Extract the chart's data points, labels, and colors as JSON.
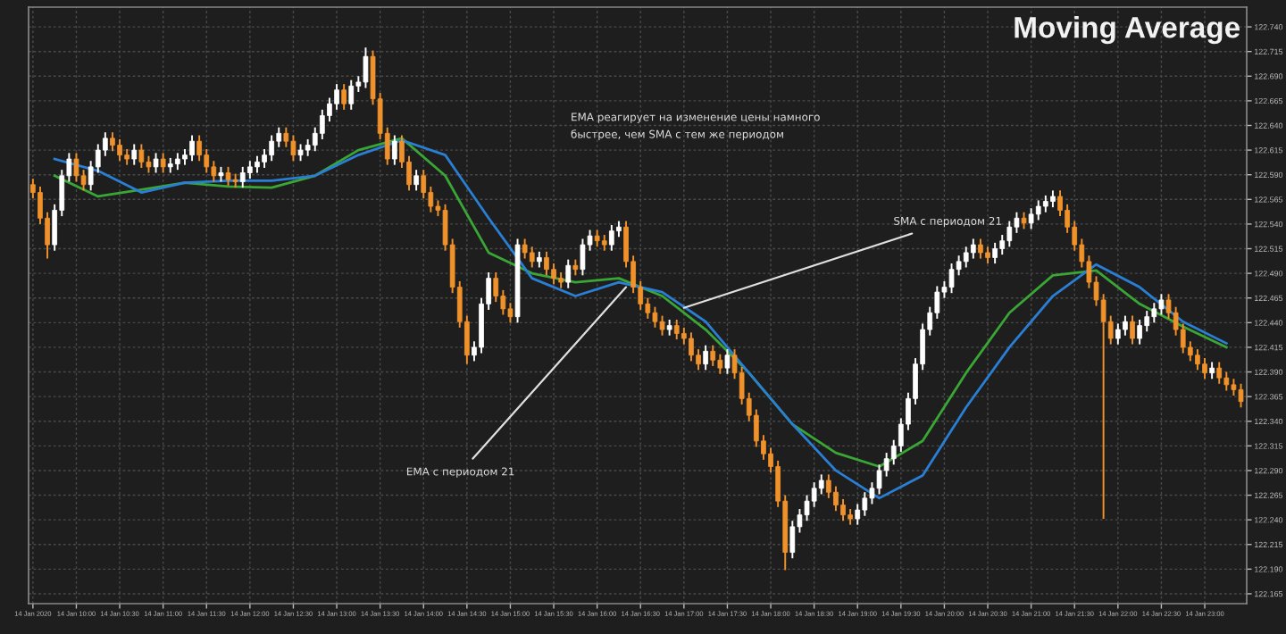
{
  "chart_data": {
    "type": "candlestick",
    "title": "Moving Average",
    "annotations": [
      {
        "text": "EMA с периодом 21",
        "x": "2020-01-14T16:20",
        "y": 122.476
      },
      {
        "text": "SMA с периодом 21",
        "x": "2020-01-14T17:00",
        "y": 122.455
      },
      "EMA реагирует на изменение цены намного\nбыстрее, чем SMA с тем же периодом"
    ],
    "grid": true,
    "xlim": [
      "2020-01-14T09:27",
      "2020-01-14T23:29"
    ],
    "ylim": [
      122.155,
      122.76
    ],
    "xticks": [
      {
        "value": "2020-01-14T09:30",
        "label": "14 Jan 2020"
      },
      {
        "value": "2020-01-14T10:00",
        "label": "14 Jan 10:00"
      },
      {
        "value": "2020-01-14T10:30",
        "label": "14 Jan 10:30"
      },
      {
        "value": "2020-01-14T11:00",
        "label": "14 Jan 11:00"
      },
      {
        "value": "2020-01-14T11:30",
        "label": "14 Jan 11:30"
      },
      {
        "value": "2020-01-14T12:00",
        "label": "14 Jan 12:00"
      },
      {
        "value": "2020-01-14T12:30",
        "label": "14 Jan 12:30"
      },
      {
        "value": "2020-01-14T13:00",
        "label": "14 Jan 13:00"
      },
      {
        "value": "2020-01-14T13:30",
        "label": "14 Jan 13:30"
      },
      {
        "value": "2020-01-14T14:00",
        "label": "14 Jan 14:00"
      },
      {
        "value": "2020-01-14T14:30",
        "label": "14 Jan 14:30"
      },
      {
        "value": "2020-01-14T15:00",
        "label": "14 Jan 15:00"
      },
      {
        "value": "2020-01-14T15:30",
        "label": "14 Jan 15:30"
      },
      {
        "value": "2020-01-14T16:00",
        "label": "14 Jan 16:00"
      },
      {
        "value": "2020-01-14T16:30",
        "label": "14 Jan 16:30"
      },
      {
        "value": "2020-01-14T17:00",
        "label": "14 Jan 17:00"
      },
      {
        "value": "2020-01-14T17:30",
        "label": "14 Jan 17:30"
      },
      {
        "value": "2020-01-14T18:00",
        "label": "14 Jan 18:00"
      },
      {
        "value": "2020-01-14T18:30",
        "label": "14 Jan 18:30"
      },
      {
        "value": "2020-01-14T19:00",
        "label": "14 Jan 19:00"
      },
      {
        "value": "2020-01-14T19:30",
        "label": "14 Jan 19:30"
      },
      {
        "value": "2020-01-14T20:00",
        "label": "14 Jan 20:00"
      },
      {
        "value": "2020-01-14T20:30",
        "label": "14 Jan 20:30"
      },
      {
        "value": "2020-01-14T21:00",
        "label": "14 Jan 21:00"
      },
      {
        "value": "2020-01-14T21:30",
        "label": "14 Jan 21:30"
      },
      {
        "value": "2020-01-14T22:00",
        "label": "14 Jan 22:00"
      },
      {
        "value": "2020-01-14T22:30",
        "label": "14 Jan 22:30"
      },
      {
        "value": "2020-01-14T23:00",
        "label": "14 Jan 23:00"
      }
    ],
    "yticks": [
      {
        "value": 122.165,
        "label": "122.165"
      },
      {
        "value": 122.19,
        "label": "122.190"
      },
      {
        "value": 122.215,
        "label": "122.215"
      },
      {
        "value": 122.24,
        "label": "122.240"
      },
      {
        "value": 122.265,
        "label": "122.265"
      },
      {
        "value": 122.29,
        "label": "122.290"
      },
      {
        "value": 122.315,
        "label": "122.315"
      },
      {
        "value": 122.34,
        "label": "122.340"
      },
      {
        "value": 122.365,
        "label": "122.365"
      },
      {
        "value": 122.39,
        "label": "122.390"
      },
      {
        "value": 122.415,
        "label": "122.415"
      },
      {
        "value": 122.44,
        "label": "122.440"
      },
      {
        "value": 122.465,
        "label": "122.465"
      },
      {
        "value": 122.49,
        "label": "122.490"
      },
      {
        "value": 122.515,
        "label": "122.515"
      },
      {
        "value": 122.54,
        "label": "122.540"
      },
      {
        "value": 122.565,
        "label": "122.565"
      },
      {
        "value": 122.59,
        "label": "122.590"
      },
      {
        "value": 122.615,
        "label": "122.615"
      },
      {
        "value": 122.64,
        "label": "122.640"
      },
      {
        "value": 122.665,
        "label": "122.665"
      },
      {
        "value": 122.69,
        "label": "122.690"
      },
      {
        "value": 122.715,
        "label": "122.715"
      },
      {
        "value": 122.74,
        "label": "122.740"
      }
    ],
    "x": [
      "2020-01-14T09:30",
      "2020-01-14T09:35",
      "2020-01-14T09:40",
      "2020-01-14T09:45",
      "2020-01-14T09:50",
      "2020-01-14T09:55",
      "2020-01-14T10:00",
      "2020-01-14T10:05",
      "2020-01-14T10:10",
      "2020-01-14T10:15",
      "2020-01-14T10:20",
      "2020-01-14T10:25",
      "2020-01-14T10:30",
      "2020-01-14T10:35",
      "2020-01-14T10:40",
      "2020-01-14T10:45",
      "2020-01-14T10:50",
      "2020-01-14T10:55",
      "2020-01-14T11:00",
      "2020-01-14T11:05",
      "2020-01-14T11:10",
      "2020-01-14T11:15",
      "2020-01-14T11:20",
      "2020-01-14T11:25",
      "2020-01-14T11:30",
      "2020-01-14T11:35",
      "2020-01-14T11:40",
      "2020-01-14T11:45",
      "2020-01-14T11:50",
      "2020-01-14T11:55",
      "2020-01-14T12:00",
      "2020-01-14T12:05",
      "2020-01-14T12:10",
      "2020-01-14T12:15",
      "2020-01-14T12:20",
      "2020-01-14T12:25",
      "2020-01-14T12:30",
      "2020-01-14T12:35",
      "2020-01-14T12:40",
      "2020-01-14T12:45",
      "2020-01-14T12:50",
      "2020-01-14T12:55",
      "2020-01-14T13:00",
      "2020-01-14T13:05",
      "2020-01-14T13:10",
      "2020-01-14T13:15",
      "2020-01-14T13:20",
      "2020-01-14T13:25",
      "2020-01-14T13:30",
      "2020-01-14T13:35",
      "2020-01-14T13:40",
      "2020-01-14T13:45",
      "2020-01-14T13:50",
      "2020-01-14T13:55",
      "2020-01-14T14:00",
      "2020-01-14T14:05",
      "2020-01-14T14:10",
      "2020-01-14T14:15",
      "2020-01-14T14:20",
      "2020-01-14T14:25",
      "2020-01-14T14:30",
      "2020-01-14T14:35",
      "2020-01-14T14:40",
      "2020-01-14T14:45",
      "2020-01-14T14:50",
      "2020-01-14T14:55",
      "2020-01-14T15:00",
      "2020-01-14T15:05",
      "2020-01-14T15:10",
      "2020-01-14T15:15",
      "2020-01-14T15:20",
      "2020-01-14T15:25",
      "2020-01-14T15:30",
      "2020-01-14T15:35",
      "2020-01-14T15:40",
      "2020-01-14T15:45",
      "2020-01-14T15:50",
      "2020-01-14T15:55",
      "2020-01-14T16:00",
      "2020-01-14T16:05",
      "2020-01-14T16:10",
      "2020-01-14T16:15",
      "2020-01-14T16:20",
      "2020-01-14T16:25",
      "2020-01-14T16:30",
      "2020-01-14T16:35",
      "2020-01-14T16:40",
      "2020-01-14T16:45",
      "2020-01-14T16:50",
      "2020-01-14T16:55",
      "2020-01-14T17:00",
      "2020-01-14T17:05",
      "2020-01-14T17:10",
      "2020-01-14T17:15",
      "2020-01-14T17:20",
      "2020-01-14T17:25",
      "2020-01-14T17:30",
      "2020-01-14T17:35",
      "2020-01-14T17:40",
      "2020-01-14T17:45",
      "2020-01-14T17:50",
      "2020-01-14T17:55",
      "2020-01-14T18:00",
      "2020-01-14T18:05",
      "2020-01-14T18:10",
      "2020-01-14T18:15",
      "2020-01-14T18:20",
      "2020-01-14T18:25",
      "2020-01-14T18:30",
      "2020-01-14T18:35",
      "2020-01-14T18:40",
      "2020-01-14T18:45",
      "2020-01-14T18:50",
      "2020-01-14T18:55",
      "2020-01-14T19:00",
      "2020-01-14T19:05",
      "2020-01-14T19:10",
      "2020-01-14T19:15",
      "2020-01-14T19:20",
      "2020-01-14T19:25",
      "2020-01-14T19:30",
      "2020-01-14T19:35",
      "2020-01-14T19:40",
      "2020-01-14T19:45",
      "2020-01-14T19:50",
      "2020-01-14T19:55",
      "2020-01-14T20:00",
      "2020-01-14T20:05",
      "2020-01-14T20:10",
      "2020-01-14T20:15",
      "2020-01-14T20:20",
      "2020-01-14T20:25",
      "2020-01-14T20:30",
      "2020-01-14T20:35",
      "2020-01-14T20:40",
      "2020-01-14T20:45",
      "2020-01-14T20:50",
      "2020-01-14T20:55",
      "2020-01-14T21:00",
      "2020-01-14T21:05",
      "2020-01-14T21:10",
      "2020-01-14T21:15",
      "2020-01-14T21:20",
      "2020-01-14T21:25",
      "2020-01-14T21:30",
      "2020-01-14T21:35",
      "2020-01-14T21:40",
      "2020-01-14T21:45",
      "2020-01-14T21:50",
      "2020-01-14T21:55",
      "2020-01-14T22:00",
      "2020-01-14T22:05",
      "2020-01-14T22:10",
      "2020-01-14T22:15",
      "2020-01-14T22:20",
      "2020-01-14T22:25",
      "2020-01-14T22:30",
      "2020-01-14T22:35",
      "2020-01-14T22:40",
      "2020-01-14T22:45",
      "2020-01-14T22:50",
      "2020-01-14T22:55",
      "2020-01-14T23:00",
      "2020-01-14T23:05",
      "2020-01-14T23:10",
      "2020-01-14T23:15",
      "2020-01-14T23:20",
      "2020-01-14T23:25"
    ],
    "ohlc": [
      [
        122.58,
        122.586,
        122.566,
        122.572
      ],
      [
        122.572,
        122.578,
        122.54,
        122.546
      ],
      [
        122.546,
        122.552,
        122.505,
        122.519
      ],
      [
        122.519,
        122.56,
        122.513,
        122.554
      ],
      [
        122.554,
        122.595,
        122.548,
        122.589
      ],
      [
        122.589,
        122.612,
        122.583,
        122.606
      ],
      [
        122.606,
        122.612,
        122.583,
        122.589
      ],
      [
        122.589,
        122.595,
        122.574,
        122.58
      ],
      [
        122.58,
        122.604,
        122.574,
        122.598
      ],
      [
        122.598,
        122.621,
        122.592,
        122.615
      ],
      [
        122.615,
        122.633,
        122.609,
        122.627
      ],
      [
        122.627,
        122.633,
        122.614,
        122.62
      ],
      [
        122.62,
        122.626,
        122.604,
        122.61
      ],
      [
        122.61,
        122.616,
        122.6,
        122.606
      ],
      [
        122.606,
        122.621,
        122.6,
        122.615
      ],
      [
        122.615,
        122.621,
        122.597,
        122.603
      ],
      [
        122.603,
        122.609,
        122.592,
        122.598
      ],
      [
        122.598,
        122.612,
        122.592,
        122.606
      ],
      [
        122.606,
        122.612,
        122.592,
        122.598
      ],
      [
        122.598,
        122.607,
        122.592,
        122.601
      ],
      [
        122.601,
        122.612,
        122.595,
        122.606
      ],
      [
        122.606,
        122.616,
        122.6,
        122.61
      ],
      [
        122.61,
        122.63,
        122.604,
        122.624
      ],
      [
        122.624,
        122.63,
        122.604,
        122.61
      ],
      [
        122.61,
        122.616,
        122.592,
        122.598
      ],
      [
        122.598,
        122.604,
        122.583,
        122.589
      ],
      [
        122.589,
        122.598,
        122.583,
        122.592
      ],
      [
        122.592,
        122.598,
        122.579,
        122.585
      ],
      [
        122.585,
        122.591,
        122.577,
        122.583
      ],
      [
        122.583,
        122.598,
        122.577,
        122.592
      ],
      [
        122.592,
        122.604,
        122.586,
        122.598
      ],
      [
        122.598,
        122.609,
        122.592,
        122.603
      ],
      [
        122.603,
        122.616,
        122.597,
        122.61
      ],
      [
        122.61,
        122.63,
        122.604,
        122.624
      ],
      [
        122.624,
        122.638,
        122.618,
        122.632
      ],
      [
        122.632,
        122.638,
        122.618,
        122.624
      ],
      [
        122.624,
        122.63,
        122.604,
        122.61
      ],
      [
        122.61,
        122.621,
        122.604,
        122.615
      ],
      [
        122.615,
        122.626,
        122.609,
        122.62
      ],
      [
        122.62,
        122.638,
        122.614,
        122.632
      ],
      [
        122.632,
        122.656,
        122.626,
        122.65
      ],
      [
        122.65,
        122.668,
        122.644,
        122.662
      ],
      [
        122.662,
        122.682,
        122.656,
        122.676
      ],
      [
        122.676,
        122.682,
        122.656,
        122.662
      ],
      [
        122.662,
        122.686,
        122.656,
        122.68
      ],
      [
        122.68,
        122.69,
        122.674,
        122.684
      ],
      [
        122.684,
        122.719,
        122.678,
        122.71
      ],
      [
        122.71,
        122.716,
        122.661,
        122.667
      ],
      [
        122.667,
        122.673,
        122.626,
        122.632
      ],
      [
        122.632,
        122.638,
        122.6,
        122.606
      ],
      [
        122.606,
        122.63,
        122.6,
        122.624
      ],
      [
        122.624,
        122.63,
        122.597,
        122.603
      ],
      [
        122.603,
        122.609,
        122.574,
        122.58
      ],
      [
        122.58,
        122.595,
        122.574,
        122.589
      ],
      [
        122.589,
        122.595,
        122.566,
        122.572
      ],
      [
        122.572,
        122.578,
        122.552,
        122.558
      ],
      [
        122.558,
        122.564,
        122.548,
        122.554
      ],
      [
        122.554,
        122.56,
        122.513,
        122.519
      ],
      [
        122.519,
        122.525,
        122.47,
        122.476
      ],
      [
        122.476,
        122.482,
        122.435,
        122.441
      ],
      [
        122.441,
        122.447,
        122.398,
        122.407
      ],
      [
        122.407,
        122.421,
        122.401,
        122.415
      ],
      [
        122.415,
        122.465,
        122.409,
        122.459
      ],
      [
        122.459,
        122.491,
        122.453,
        122.485
      ],
      [
        122.485,
        122.491,
        122.461,
        122.467
      ],
      [
        122.467,
        122.473,
        122.448,
        122.454
      ],
      [
        122.454,
        122.46,
        122.44,
        122.446
      ],
      [
        122.446,
        122.525,
        122.44,
        122.519
      ],
      [
        122.519,
        122.525,
        122.505,
        122.511
      ],
      [
        122.511,
        122.517,
        122.496,
        122.502
      ],
      [
        122.502,
        122.512,
        122.496,
        122.506
      ],
      [
        122.506,
        122.512,
        122.488,
        122.494
      ],
      [
        122.494,
        122.5,
        122.479,
        122.485
      ],
      [
        122.485,
        122.491,
        122.475,
        122.481
      ],
      [
        122.481,
        122.504,
        122.475,
        122.498
      ],
      [
        122.498,
        122.504,
        122.488,
        122.494
      ],
      [
        122.494,
        122.525,
        122.488,
        122.519
      ],
      [
        122.519,
        122.534,
        122.513,
        122.528
      ],
      [
        122.528,
        122.534,
        122.517,
        122.523
      ],
      [
        122.523,
        122.529,
        122.513,
        122.519
      ],
      [
        122.519,
        122.539,
        122.513,
        122.533
      ],
      [
        122.533,
        122.543,
        122.527,
        122.537
      ],
      [
        122.537,
        122.543,
        122.496,
        122.502
      ],
      [
        122.502,
        122.508,
        122.47,
        122.476
      ],
      [
        122.476,
        122.482,
        122.453,
        122.459
      ],
      [
        122.459,
        122.465,
        122.444,
        122.45
      ],
      [
        122.45,
        122.456,
        122.435,
        122.441
      ],
      [
        122.441,
        122.447,
        122.427,
        122.433
      ],
      [
        122.433,
        122.443,
        122.427,
        122.437
      ],
      [
        122.437,
        122.443,
        122.423,
        122.429
      ],
      [
        122.429,
        122.435,
        122.418,
        122.424
      ],
      [
        122.424,
        122.43,
        122.401,
        122.407
      ],
      [
        122.407,
        122.413,
        122.392,
        122.398
      ],
      [
        122.398,
        122.417,
        122.392,
        122.411
      ],
      [
        122.411,
        122.417,
        122.396,
        122.402
      ],
      [
        122.402,
        122.408,
        122.388,
        122.394
      ],
      [
        122.394,
        122.413,
        122.388,
        122.407
      ],
      [
        122.407,
        122.413,
        122.383,
        122.389
      ],
      [
        122.389,
        122.395,
        122.357,
        122.363
      ],
      [
        122.363,
        122.369,
        122.34,
        122.346
      ],
      [
        122.346,
        122.352,
        122.314,
        122.32
      ],
      [
        122.32,
        122.326,
        122.301,
        122.307
      ],
      [
        122.307,
        122.313,
        122.288,
        122.294
      ],
      [
        122.294,
        122.3,
        122.253,
        122.259
      ],
      [
        122.259,
        122.265,
        122.189,
        122.207
      ],
      [
        122.207,
        122.239,
        122.201,
        122.233
      ],
      [
        122.233,
        122.251,
        122.227,
        122.245
      ],
      [
        122.245,
        122.265,
        122.239,
        122.259
      ],
      [
        122.259,
        122.278,
        122.253,
        122.272
      ],
      [
        122.272,
        122.286,
        122.266,
        122.28
      ],
      [
        122.28,
        122.286,
        122.262,
        122.268
      ],
      [
        122.268,
        122.274,
        122.249,
        122.255
      ],
      [
        122.255,
        122.261,
        122.239,
        122.245
      ],
      [
        122.245,
        122.251,
        122.235,
        122.241
      ],
      [
        122.241,
        122.256,
        122.235,
        122.25
      ],
      [
        122.25,
        122.268,
        122.244,
        122.262
      ],
      [
        122.262,
        122.278,
        122.256,
        122.272
      ],
      [
        122.272,
        122.296,
        122.266,
        122.29
      ],
      [
        122.29,
        122.308,
        122.284,
        122.302
      ],
      [
        122.302,
        122.321,
        122.296,
        122.315
      ],
      [
        122.315,
        122.343,
        122.309,
        122.337
      ],
      [
        122.337,
        122.369,
        122.331,
        122.363
      ],
      [
        122.363,
        122.404,
        122.357,
        122.398
      ],
      [
        122.398,
        122.439,
        122.392,
        122.433
      ],
      [
        122.433,
        122.456,
        122.427,
        122.45
      ],
      [
        122.45,
        122.477,
        122.444,
        122.471
      ],
      [
        122.471,
        122.482,
        122.465,
        122.476
      ],
      [
        122.476,
        122.5,
        122.47,
        122.494
      ],
      [
        122.494,
        122.508,
        122.488,
        122.502
      ],
      [
        122.502,
        122.517,
        122.496,
        122.511
      ],
      [
        122.511,
        122.525,
        122.505,
        122.519
      ],
      [
        122.519,
        122.525,
        122.505,
        122.511
      ],
      [
        122.511,
        122.517,
        122.5,
        122.506
      ],
      [
        122.506,
        122.521,
        122.5,
        122.515
      ],
      [
        122.515,
        122.529,
        122.509,
        122.523
      ],
      [
        122.523,
        122.543,
        122.517,
        122.537
      ],
      [
        122.537,
        122.552,
        122.531,
        122.546
      ],
      [
        122.546,
        122.552,
        122.535,
        122.541
      ],
      [
        122.541,
        122.556,
        122.535,
        122.55
      ],
      [
        122.55,
        122.564,
        122.544,
        122.558
      ],
      [
        122.558,
        122.569,
        122.552,
        122.563
      ],
      [
        122.563,
        122.574,
        122.557,
        122.568
      ],
      [
        122.568,
        122.574,
        122.548,
        122.554
      ],
      [
        122.554,
        122.56,
        122.531,
        122.537
      ],
      [
        122.537,
        122.543,
        122.513,
        122.519
      ],
      [
        122.519,
        122.525,
        122.496,
        122.502
      ],
      [
        122.502,
        122.508,
        122.475,
        122.481
      ],
      [
        122.481,
        122.487,
        122.457,
        122.463
      ],
      [
        122.463,
        122.469,
        122.241,
        122.441
      ],
      [
        122.441,
        122.447,
        122.418,
        122.424
      ],
      [
        122.424,
        122.439,
        122.418,
        122.433
      ],
      [
        122.433,
        122.447,
        122.427,
        122.441
      ],
      [
        122.441,
        122.447,
        122.418,
        122.424
      ],
      [
        122.424,
        122.443,
        122.418,
        122.437
      ],
      [
        122.437,
        122.452,
        122.431,
        122.446
      ],
      [
        122.446,
        122.46,
        122.44,
        122.454
      ],
      [
        122.454,
        122.469,
        122.448,
        122.463
      ],
      [
        122.463,
        122.469,
        122.444,
        122.45
      ],
      [
        122.45,
        122.456,
        122.427,
        122.433
      ],
      [
        122.433,
        122.439,
        122.409,
        122.415
      ],
      [
        122.415,
        122.421,
        122.401,
        122.407
      ],
      [
        122.407,
        122.413,
        122.392,
        122.398
      ],
      [
        122.398,
        122.404,
        122.383,
        122.389
      ],
      [
        122.389,
        122.4,
        122.383,
        122.394
      ],
      [
        122.394,
        122.4,
        122.378,
        122.384
      ],
      [
        122.384,
        122.39,
        122.371,
        122.377
      ],
      [
        122.377,
        122.383,
        122.366,
        122.372
      ],
      [
        122.372,
        122.378,
        122.354,
        122.36
      ]
    ],
    "series": [
      {
        "type": "line",
        "color": "#3aa635",
        "x": [
          "2020-01-14T09:45",
          "2020-01-14T10:15",
          "2020-01-14T10:45",
          "2020-01-14T11:15",
          "2020-01-14T11:45",
          "2020-01-14T12:15",
          "2020-01-14T12:45",
          "2020-01-14T13:15",
          "2020-01-14T13:45",
          "2020-01-14T14:15",
          "2020-01-14T14:45",
          "2020-01-14T15:15",
          "2020-01-14T15:45",
          "2020-01-14T16:15",
          "2020-01-14T16:45",
          "2020-01-14T17:15",
          "2020-01-14T17:45",
          "2020-01-14T18:15",
          "2020-01-14T18:45",
          "2020-01-14T19:15",
          "2020-01-14T19:45",
          "2020-01-14T20:15",
          "2020-01-14T20:45",
          "2020-01-14T21:15",
          "2020-01-14T21:45",
          "2020-01-14T22:15",
          "2020-01-14T22:45",
          "2020-01-14T23:15"
        ],
        "values": [
          122.589,
          122.568,
          122.575,
          122.582,
          122.578,
          122.577,
          122.589,
          122.615,
          122.627,
          122.589,
          122.511,
          122.49,
          122.481,
          122.485,
          122.467,
          122.433,
          122.389,
          122.337,
          122.308,
          122.294,
          122.32,
          122.389,
          122.45,
          122.488,
          122.493,
          122.459,
          122.436,
          122.415
        ]
      },
      {
        "type": "line",
        "color": "#2a7fd4",
        "x": [
          "2020-01-14T09:45",
          "2020-01-14T10:15",
          "2020-01-14T10:45",
          "2020-01-14T11:15",
          "2020-01-14T11:45",
          "2020-01-14T12:15",
          "2020-01-14T12:45",
          "2020-01-14T13:15",
          "2020-01-14T13:45",
          "2020-01-14T14:15",
          "2020-01-14T14:45",
          "2020-01-14T15:15",
          "2020-01-14T15:45",
          "2020-01-14T16:15",
          "2020-01-14T16:45",
          "2020-01-14T17:15",
          "2020-01-14T17:45",
          "2020-01-14T18:15",
          "2020-01-14T18:45",
          "2020-01-14T19:15",
          "2020-01-14T19:45",
          "2020-01-14T20:15",
          "2020-01-14T20:45",
          "2020-01-14T21:15",
          "2020-01-14T21:45",
          "2020-01-14T22:15",
          "2020-01-14T22:45",
          "2020-01-14T23:15"
        ],
        "values": [
          122.606,
          122.594,
          122.572,
          122.582,
          122.584,
          122.584,
          122.589,
          122.61,
          122.625,
          122.61,
          122.546,
          122.485,
          122.467,
          122.481,
          122.471,
          122.441,
          122.389,
          122.337,
          122.29,
          122.262,
          122.285,
          122.354,
          122.415,
          122.467,
          122.499,
          122.476,
          122.441,
          122.419
        ]
      }
    ]
  }
}
